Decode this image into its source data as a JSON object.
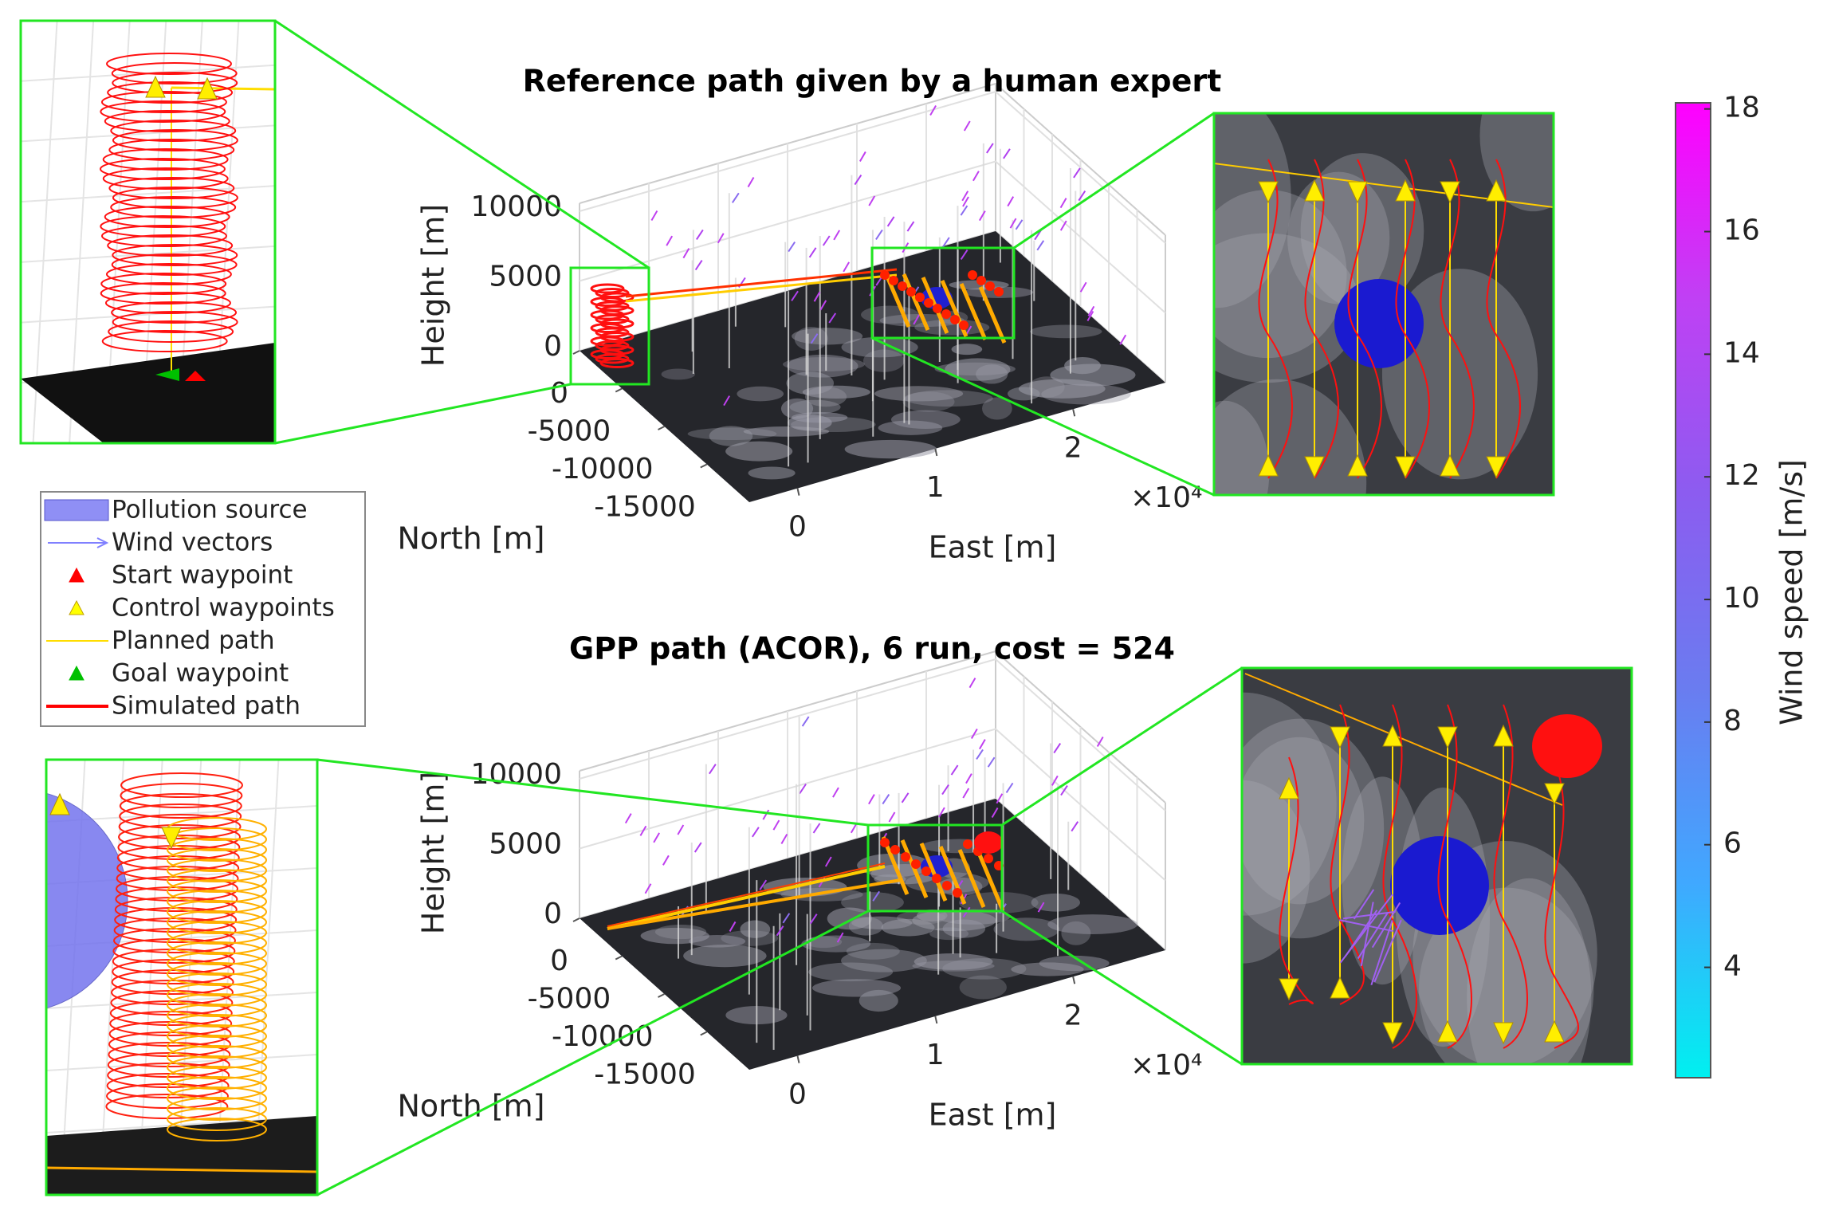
{
  "chart_data": [
    {
      "type": "scene3d",
      "title": "Reference path given by a human expert",
      "zlabel": "Height [m]",
      "ylabel": "North [m]",
      "xlabel": "East [m]",
      "zlim": [
        0,
        10000
      ],
      "zticks": [
        0,
        5000,
        10000
      ],
      "ylim": [
        -20000,
        0
      ],
      "yticks": [
        0,
        -5000,
        -10000,
        -15000
      ],
      "xlim": [
        -0.35,
        2.67
      ],
      "xticks": [
        0,
        1,
        2
      ],
      "xmultiplier": "×10⁴"
    },
    {
      "type": "scene3d",
      "title": "GPP path (ACOR), 6 run, cost = 524",
      "zlabel": "Height [m]",
      "ylabel": "North [m]",
      "xlabel": "East [m]",
      "zlim": [
        0,
        10000
      ],
      "zticks": [
        0,
        5000,
        10000
      ],
      "ylim": [
        -20000,
        0
      ],
      "yticks": [
        0,
        -5000,
        -10000,
        -15000
      ],
      "xlim": [
        -0.35,
        2.67
      ],
      "xticks": [
        0,
        1,
        2
      ],
      "xmultiplier": "×10⁴"
    },
    {
      "type": "colorbar",
      "label": "Wind speed [m/s]",
      "clim": [
        2.2,
        18.1
      ],
      "ticks": [
        4,
        6,
        8,
        10,
        12,
        14,
        16,
        18
      ],
      "colors": [
        "#00f0f0",
        "#40a8ff",
        "#6a7cf0",
        "#8c5cf0",
        "#c040f4",
        "#ff00ff"
      ]
    }
  ],
  "legend": [
    {
      "name": "Pollution source",
      "marker": "patch",
      "color": "#8f8ff5"
    },
    {
      "name": "Wind vectors",
      "marker": "arrow",
      "color": "#8080ff"
    },
    {
      "name": "Start waypoint",
      "marker": "triangle",
      "color": "#ff0000"
    },
    {
      "name": "Control waypoints",
      "marker": "triangle",
      "color": "#ffff00"
    },
    {
      "name": "Planned path",
      "marker": "line",
      "color": "#ffdd00"
    },
    {
      "name": "Goal waypoint",
      "marker": "triangle",
      "color": "#00c000"
    },
    {
      "name": "Simulated path",
      "marker": "line",
      "color": "#ff0000"
    }
  ]
}
